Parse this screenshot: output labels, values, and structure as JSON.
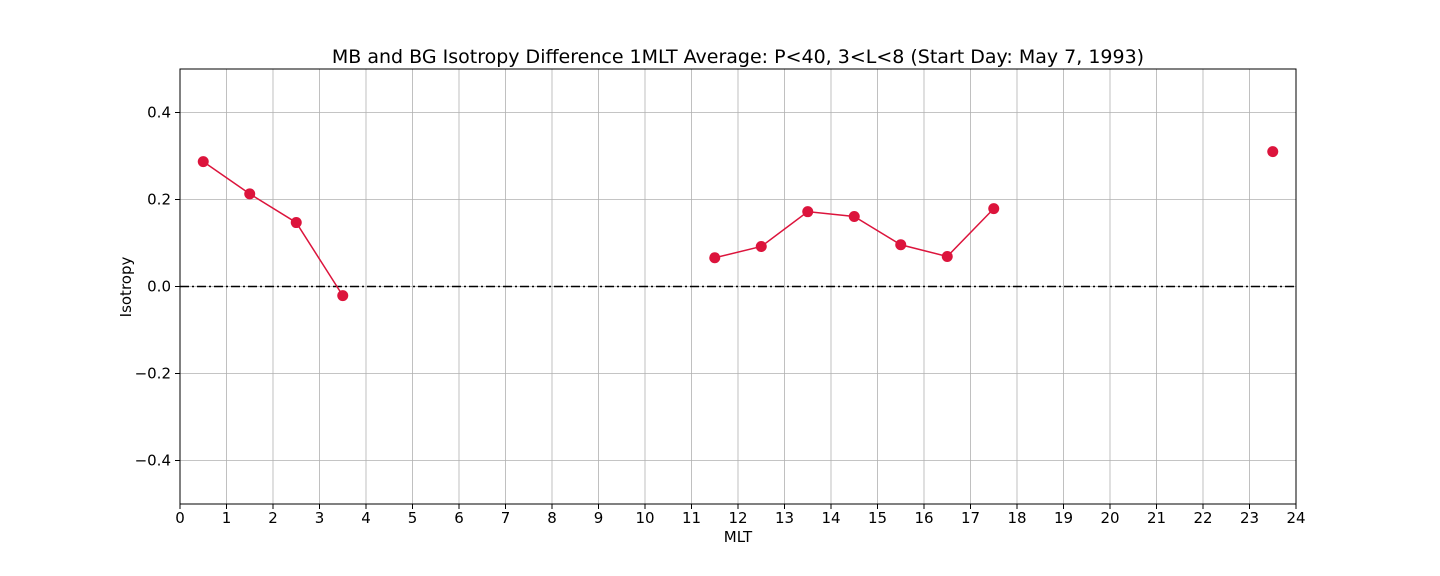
{
  "chart_data": {
    "type": "line",
    "title": "MB and BG Isotropy Difference 1MLT Average: P<40, 3<L<8 (Start Day: May 7, 1993)",
    "xlabel": "MLT",
    "ylabel": "Isotropy",
    "xlim": [
      0,
      24
    ],
    "ylim": [
      -0.5,
      0.5
    ],
    "xticks": [
      0,
      1,
      2,
      3,
      4,
      5,
      6,
      7,
      8,
      9,
      10,
      11,
      12,
      13,
      14,
      15,
      16,
      17,
      18,
      19,
      20,
      21,
      22,
      23,
      24
    ],
    "yticks": [
      -0.4,
      -0.2,
      0.0,
      0.2,
      0.4
    ],
    "ytick_labels": [
      "−0.4",
      "−0.2",
      "0.0",
      "0.2",
      "0.4"
    ],
    "grid": true,
    "reference_line": {
      "y": 0.0,
      "style": "dash-dot",
      "color": "#000000"
    },
    "series": [
      {
        "color": "#dc143c",
        "segments": [
          {
            "x": [
              0.5,
              1.5,
              2.5,
              3.5
            ],
            "y": [
              0.287,
              0.213,
              0.147,
              -0.021
            ]
          },
          {
            "x": [
              11.5,
              12.5,
              13.5,
              14.5,
              15.5,
              16.5,
              17.5
            ],
            "y": [
              0.066,
              0.092,
              0.172,
              0.161,
              0.096,
              0.069,
              0.179
            ]
          },
          {
            "x": [
              23.5
            ],
            "y": [
              0.31
            ]
          }
        ]
      }
    ]
  }
}
